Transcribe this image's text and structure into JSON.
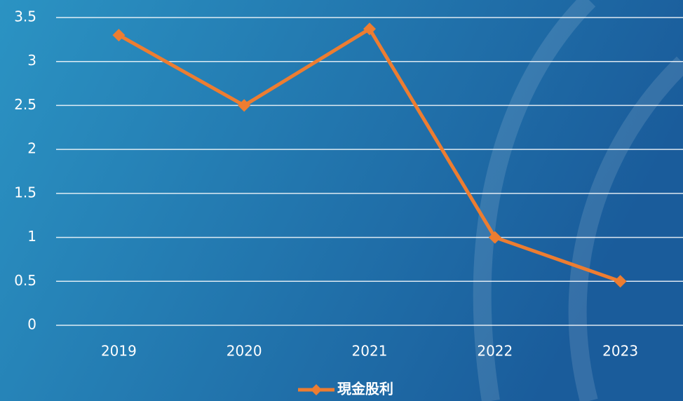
{
  "chart_data": {
    "type": "line",
    "categories": [
      "2019",
      "2020",
      "2021",
      "2022",
      "2023"
    ],
    "series": [
      {
        "name": "現金股利",
        "color": "#ed7d31",
        "values": [
          3.3,
          2.5,
          3.37,
          1,
          0.5
        ]
      }
    ],
    "ylim": [
      0,
      3.5
    ],
    "yticks": [
      0,
      0.5,
      1,
      1.5,
      2,
      2.5,
      3,
      3.5
    ],
    "grid": true,
    "legend": "bottom"
  }
}
